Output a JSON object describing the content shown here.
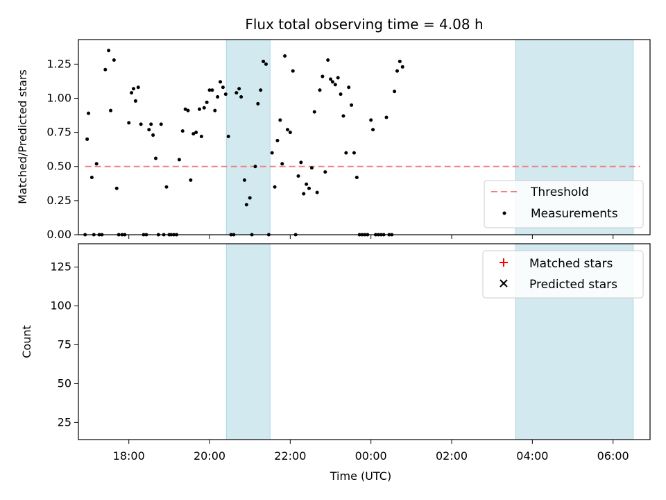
{
  "chart_data": [
    {
      "type": "scatter",
      "title": "Flux total observing time = 4.08 h",
      "xlabel": "",
      "ylabel": "Matched/Predicted stars",
      "x_unit": "UTC time",
      "xlim": [
        "16:45",
        "06:55"
      ],
      "ylim": [
        0,
        1.43
      ],
      "yticks": [
        0.0,
        0.25,
        0.5,
        0.75,
        1.0,
        1.25
      ],
      "ytick_labels": [
        "0.00",
        "0.25",
        "0.50",
        "0.75",
        "1.00",
        "1.25"
      ],
      "shaded_intervals": [
        [
          "20:25",
          "21:30"
        ],
        [
          "03:35",
          "06:30"
        ]
      ],
      "shade_color": "#d2e9f0",
      "legend": {
        "placement": "lower right",
        "entries": [
          "Threshold",
          "Measurements"
        ]
      },
      "series": [
        {
          "name": "Threshold",
          "kind": "dashed-line",
          "color": "#f08080",
          "x": [
            "16:55",
            "06:40"
          ],
          "y": [
            0.5,
            0.5
          ]
        },
        {
          "name": "Measurements",
          "kind": "points",
          "color": "#000000",
          "points": [
            [
              "16:55",
              0.0
            ],
            [
              "16:58",
              0.7
            ],
            [
              "17:00",
              0.89
            ],
            [
              "17:05",
              0.42
            ],
            [
              "17:08",
              0.0
            ],
            [
              "17:12",
              0.52
            ],
            [
              "17:16",
              0.0
            ],
            [
              "17:20",
              0.0
            ],
            [
              "17:25",
              1.21
            ],
            [
              "17:30",
              1.35
            ],
            [
              "17:33",
              0.91
            ],
            [
              "17:38",
              1.28
            ],
            [
              "17:42",
              0.34
            ],
            [
              "17:45",
              0.0
            ],
            [
              "17:50",
              0.0
            ],
            [
              "17:54",
              0.0
            ],
            [
              "18:00",
              0.82
            ],
            [
              "18:04",
              1.04
            ],
            [
              "18:07",
              1.07
            ],
            [
              "18:10",
              0.98
            ],
            [
              "18:14",
              1.08
            ],
            [
              "18:18",
              0.81
            ],
            [
              "18:22",
              0.0
            ],
            [
              "18:26",
              0.0
            ],
            [
              "18:30",
              0.77
            ],
            [
              "18:33",
              0.81
            ],
            [
              "18:36",
              0.73
            ],
            [
              "18:40",
              0.56
            ],
            [
              "18:44",
              0.0
            ],
            [
              "18:48",
              0.81
            ],
            [
              "18:52",
              0.0
            ],
            [
              "18:56",
              0.35
            ],
            [
              "19:00",
              0.0
            ],
            [
              "19:03",
              0.0
            ],
            [
              "19:07",
              0.0
            ],
            [
              "19:11",
              0.0
            ],
            [
              "19:15",
              0.55
            ],
            [
              "19:20",
              0.76
            ],
            [
              "19:24",
              0.92
            ],
            [
              "19:28",
              0.91
            ],
            [
              "19:32",
              0.4
            ],
            [
              "19:36",
              0.74
            ],
            [
              "19:40",
              0.75
            ],
            [
              "19:45",
              0.92
            ],
            [
              "19:48",
              0.72
            ],
            [
              "19:52",
              0.93
            ],
            [
              "19:56",
              0.97
            ],
            [
              "20:00",
              1.06
            ],
            [
              "20:04",
              1.06
            ],
            [
              "20:08",
              0.91
            ],
            [
              "20:12",
              1.01
            ],
            [
              "20:16",
              1.12
            ],
            [
              "20:20",
              1.08
            ],
            [
              "20:24",
              1.03
            ],
            [
              "20:28",
              0.72
            ],
            [
              "20:32",
              0.0
            ],
            [
              "20:36",
              0.0
            ],
            [
              "20:40",
              1.04
            ],
            [
              "20:44",
              1.07
            ],
            [
              "20:47",
              1.01
            ],
            [
              "20:52",
              0.4
            ],
            [
              "20:55",
              0.22
            ],
            [
              "21:00",
              0.27
            ],
            [
              "21:03",
              0.0
            ],
            [
              "21:08",
              0.5
            ],
            [
              "21:12",
              0.96
            ],
            [
              "21:16",
              1.06
            ],
            [
              "21:20",
              1.27
            ],
            [
              "21:24",
              1.25
            ],
            [
              "21:28",
              0.0
            ],
            [
              "21:33",
              0.6
            ],
            [
              "21:37",
              0.35
            ],
            [
              "21:41",
              0.69
            ],
            [
              "21:45",
              0.84
            ],
            [
              "21:48",
              0.52
            ],
            [
              "21:52",
              1.31
            ],
            [
              "21:56",
              0.77
            ],
            [
              "22:00",
              0.75
            ],
            [
              "22:04",
              1.2
            ],
            [
              "22:08",
              0.0
            ],
            [
              "22:12",
              0.43
            ],
            [
              "22:16",
              0.53
            ],
            [
              "22:20",
              0.3
            ],
            [
              "22:24",
              0.37
            ],
            [
              "22:28",
              0.34
            ],
            [
              "22:32",
              0.49
            ],
            [
              "22:36",
              0.9
            ],
            [
              "22:40",
              0.31
            ],
            [
              "22:44",
              1.06
            ],
            [
              "22:48",
              1.16
            ],
            [
              "22:52",
              0.46
            ],
            [
              "22:56",
              1.28
            ],
            [
              "23:00",
              1.14
            ],
            [
              "23:03",
              1.12
            ],
            [
              "23:07",
              1.1
            ],
            [
              "23:11",
              1.15
            ],
            [
              "23:15",
              1.03
            ],
            [
              "23:19",
              0.87
            ],
            [
              "23:23",
              0.6
            ],
            [
              "23:27",
              1.08
            ],
            [
              "23:31",
              0.95
            ],
            [
              "23:35",
              0.6
            ],
            [
              "23:39",
              0.42
            ],
            [
              "23:43",
              0.0
            ],
            [
              "23:47",
              0.0
            ],
            [
              "23:51",
              0.0
            ],
            [
              "23:55",
              0.0
            ],
            [
              "00:00",
              0.84
            ],
            [
              "00:03",
              0.77
            ],
            [
              "00:07",
              0.0
            ],
            [
              "00:11",
              0.0
            ],
            [
              "00:15",
              0.0
            ],
            [
              "00:19",
              0.0
            ],
            [
              "00:23",
              0.86
            ],
            [
              "00:27",
              0.0
            ],
            [
              "00:31",
              0.0
            ],
            [
              "00:35",
              1.05
            ],
            [
              "00:39",
              1.2
            ],
            [
              "00:43",
              1.27
            ],
            [
              "00:47",
              1.23
            ]
          ]
        }
      ]
    },
    {
      "type": "scatter",
      "title": "",
      "xlabel": "Time (UTC)",
      "ylabel": "Count",
      "xlim": [
        "16:45",
        "06:55"
      ],
      "ylim": [
        14,
        140
      ],
      "xtick_labels": [
        "18:00",
        "20:00",
        "22:00",
        "00:00",
        "02:00",
        "04:00",
        "06:00"
      ],
      "ytick_labels": [
        "25",
        "50",
        "75",
        "100",
        "125"
      ],
      "legend": {
        "placement": "upper right",
        "entries": [
          "Matched stars",
          "Predicted stars"
        ]
      },
      "series": [
        {
          "name": "Matched stars",
          "marker": "plus",
          "color": "#ff0000"
        },
        {
          "name": "Predicted stars",
          "marker": "x",
          "color": "#000000"
        }
      ]
    }
  ]
}
